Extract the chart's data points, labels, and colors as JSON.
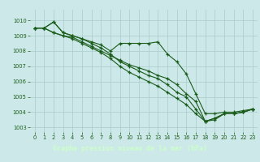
{
  "title": "Graphe pression niveau de la mer (hPa)",
  "bg_color": "#cce8e8",
  "grid_color": "#aacccc",
  "line_color": "#1a5c1a",
  "label_bg": "#1a5c1a",
  "label_fg": "#ccffcc",
  "xlim": [
    -0.5,
    23.5
  ],
  "ylim": [
    1002.7,
    1010.7
  ],
  "yticks": [
    1003,
    1004,
    1005,
    1006,
    1007,
    1008,
    1009,
    1010
  ],
  "xticks": [
    0,
    1,
    2,
    3,
    4,
    5,
    6,
    7,
    8,
    9,
    10,
    11,
    12,
    13,
    14,
    15,
    16,
    17,
    18,
    19,
    20,
    21,
    22,
    23
  ],
  "series": [
    [
      1009.5,
      1009.5,
      1009.9,
      1009.2,
      1009.0,
      1008.8,
      1008.6,
      1008.4,
      1008.0,
      1008.5,
      1008.5,
      1008.5,
      1008.5,
      1008.6,
      1007.8,
      1007.3,
      1006.5,
      1005.2,
      1003.9,
      1003.9,
      1004.0,
      1004.0,
      1004.1,
      1004.2
    ],
    [
      1009.5,
      1009.5,
      1009.2,
      1009.0,
      1008.9,
      1008.6,
      1008.3,
      1008.0,
      1007.7,
      1007.4,
      1007.1,
      1006.9,
      1006.7,
      1006.4,
      1006.2,
      1005.8,
      1005.2,
      1004.7,
      1003.4,
      1003.6,
      1003.9,
      1003.9,
      1004.0,
      1004.2
    ],
    [
      1009.5,
      1009.5,
      1009.9,
      1009.2,
      1009.0,
      1008.8,
      1008.5,
      1008.2,
      1007.8,
      1007.3,
      1007.0,
      1006.7,
      1006.4,
      1006.2,
      1005.8,
      1005.3,
      1005.0,
      1004.2,
      1003.4,
      1003.6,
      1003.9,
      1003.9,
      1004.0,
      1004.2
    ],
    [
      1009.5,
      1009.5,
      1009.2,
      1009.0,
      1008.8,
      1008.5,
      1008.2,
      1007.9,
      1007.5,
      1007.0,
      1006.6,
      1006.3,
      1006.0,
      1005.7,
      1005.3,
      1004.9,
      1004.5,
      1003.9,
      1003.4,
      1003.5,
      1003.9,
      1003.9,
      1004.0,
      1004.2
    ]
  ]
}
